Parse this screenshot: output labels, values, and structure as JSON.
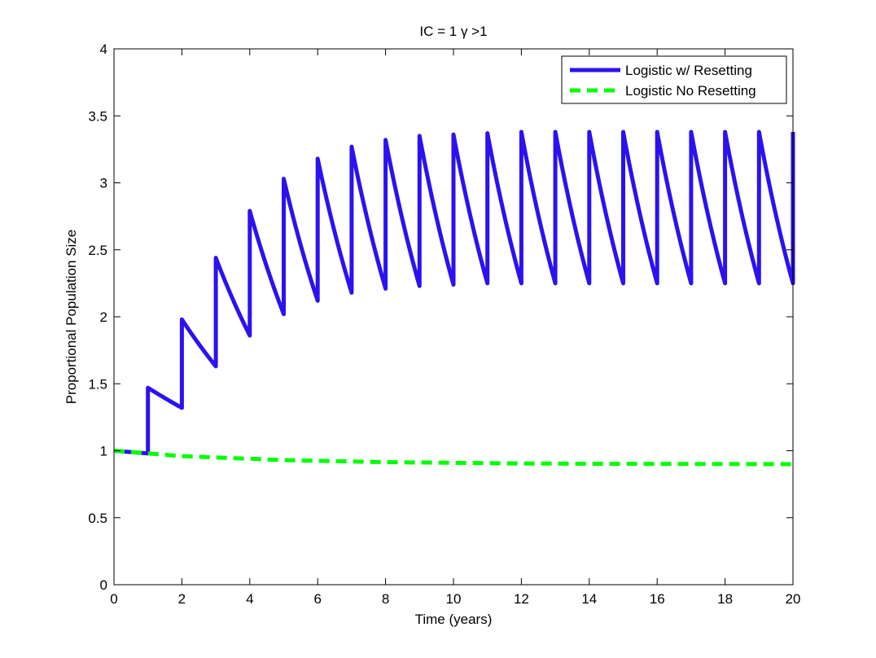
{
  "chart_data": {
    "type": "line",
    "title": "IC = 1 γ >1",
    "xlabel": "Time (years)",
    "ylabel": "Proportional Population Size",
    "xlim": [
      0,
      20
    ],
    "ylim": [
      0,
      4
    ],
    "xticks": [
      0,
      2,
      4,
      6,
      8,
      10,
      12,
      14,
      16,
      18,
      20
    ],
    "xtick_labels": [
      "0",
      "2",
      "4",
      "6",
      "8",
      "10",
      "12",
      "14",
      "16",
      "18",
      "20"
    ],
    "yticks": [
      0,
      0.5,
      1,
      1.5,
      2,
      2.5,
      3,
      3.5,
      4
    ],
    "ytick_labels": [
      "0",
      "0.5",
      "1",
      "1.5",
      "2",
      "2.5",
      "3",
      "3.5",
      "4"
    ],
    "grid": false,
    "legend_position": "top-right",
    "series": [
      {
        "name": "Logistic w/ Resetting",
        "color": "#2b12f0",
        "style": "solid",
        "reset_times": [
          1,
          2,
          3,
          4,
          5,
          6,
          7,
          8,
          9,
          10,
          11,
          12,
          13,
          14,
          15,
          16,
          17,
          18,
          19,
          20
        ],
        "pre_reset_values": [
          0.98,
          1.32,
          1.63,
          1.86,
          2.02,
          2.12,
          2.18,
          2.21,
          2.23,
          2.24,
          2.25,
          2.25,
          2.25,
          2.25,
          2.25,
          2.25,
          2.25,
          2.25,
          2.25,
          2.25
        ],
        "post_reset_values": [
          1.47,
          1.98,
          2.44,
          2.79,
          3.03,
          3.18,
          3.27,
          3.32,
          3.35,
          3.36,
          3.37,
          3.38,
          3.38,
          3.38,
          3.38,
          3.38,
          3.38,
          3.38,
          3.38,
          3.38
        ],
        "start_value": 1.0
      },
      {
        "name": "Logistic No Resetting",
        "color": "#00ff00",
        "style": "dashed",
        "x": [
          0,
          1,
          2,
          3,
          4,
          5,
          6,
          8,
          10,
          12,
          14,
          16,
          18,
          20
        ],
        "values": [
          1.0,
          0.98,
          0.96,
          0.95,
          0.94,
          0.93,
          0.925,
          0.915,
          0.91,
          0.905,
          0.903,
          0.902,
          0.901,
          0.9
        ]
      }
    ]
  }
}
